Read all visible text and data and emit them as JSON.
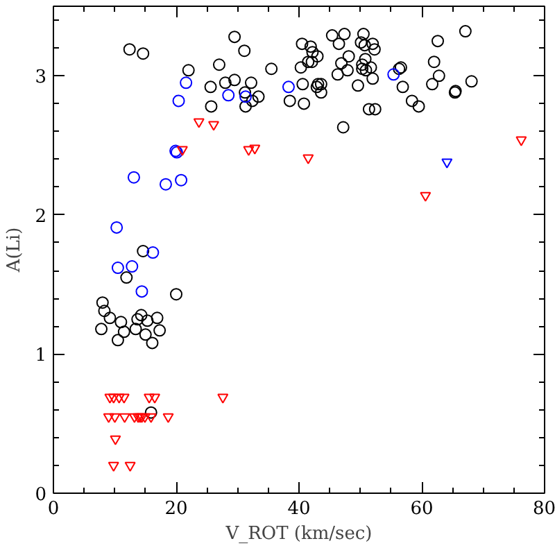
{
  "chart_data": {
    "type": "scatter",
    "xlabel": "V_ROT (km/sec)",
    "ylabel": "A(Li)",
    "xlim": [
      0,
      80
    ],
    "ylim": [
      0,
      3.5
    ],
    "xticks": [
      0,
      20,
      40,
      60,
      80
    ],
    "yticks": [
      0,
      1,
      2,
      3
    ],
    "grid": false,
    "series": [
      {
        "color": "#000000",
        "marker": "circle",
        "x": [
          12.4,
          14.6,
          29.5,
          31.1,
          22.0,
          27.0,
          35.5,
          25.6,
          28.0,
          29.5,
          32.2,
          31.2,
          33.4,
          32.4,
          31.3,
          25.7,
          38.5,
          14.6,
          40.5,
          41.9,
          42.2,
          43.0,
          41.5,
          42.1,
          40.3,
          40.6,
          42.9,
          43.1,
          43.6,
          43.6,
          40.8,
          45.4,
          47.4,
          46.5,
          50.5,
          50.1,
          50.7,
          52.0,
          52.3,
          48.1,
          46.9,
          47.9,
          46.3,
          50.8,
          50.3,
          51.7,
          50.3,
          50.9,
          52.0,
          49.6,
          51.4,
          52.4,
          47.2,
          56.3,
          56.6,
          56.9,
          58.4,
          59.5,
          62.6,
          62.0,
          62.8,
          61.7,
          65.4,
          65.5,
          67.1,
          68.1,
          11.9,
          8.0,
          8.3,
          9.2,
          7.8,
          11.0,
          11.5,
          10.5,
          14.3,
          13.7,
          15.3,
          16.9,
          13.4,
          15.0,
          17.3,
          16.1,
          15.9
        ],
        "values": [
          3.19,
          3.16,
          3.28,
          3.18,
          3.04,
          3.08,
          3.05,
          2.92,
          2.95,
          2.97,
          2.95,
          2.88,
          2.85,
          2.82,
          2.78,
          2.78,
          2.82,
          1.74,
          3.23,
          3.21,
          3.17,
          3.14,
          3.1,
          3.1,
          3.06,
          2.94,
          2.92,
          2.94,
          2.94,
          2.88,
          2.8,
          3.29,
          3.3,
          3.23,
          3.3,
          3.24,
          3.22,
          3.23,
          3.19,
          3.14,
          3.09,
          3.04,
          3.01,
          3.12,
          3.08,
          3.06,
          3.05,
          3.04,
          2.98,
          2.93,
          2.76,
          2.76,
          2.63,
          3.05,
          3.06,
          2.92,
          2.82,
          2.78,
          3.25,
          3.1,
          3.0,
          2.94,
          2.88,
          2.89,
          3.32,
          2.96,
          1.55,
          1.37,
          1.31,
          1.26,
          1.18,
          1.23,
          1.16,
          1.1,
          1.28,
          1.25,
          1.24,
          1.26,
          1.18,
          1.14,
          1.17,
          1.08,
          0.58
        ]
      },
      {
        "color": "#000000",
        "marker": "circle",
        "x": [
          20.0
        ],
        "values": [
          1.43
        ]
      },
      {
        "color": "#0000ff",
        "marker": "circle",
        "x": [
          21.6,
          20.4,
          28.5,
          31.3,
          38.3,
          19.9,
          20.1,
          13.1,
          18.3,
          10.3,
          16.2,
          12.8,
          10.5,
          14.4,
          55.4
        ],
        "values": [
          2.95,
          2.82,
          2.86,
          2.85,
          2.92,
          2.46,
          2.45,
          2.27,
          2.22,
          1.91,
          1.73,
          1.63,
          1.62,
          1.45,
          3.01
        ]
      },
      {
        "color": "#0000ff",
        "marker": "circle",
        "x": [
          20.8
        ],
        "values": [
          2.25
        ]
      },
      {
        "color": "#0000ff",
        "marker": "triangle",
        "x": [
          64.1
        ],
        "values": [
          2.38
        ]
      },
      {
        "color": "#ff0000",
        "marker": "triangle",
        "x": [
          23.7,
          26.1,
          21.0,
          31.8,
          32.8,
          41.5,
          60.6,
          76.2,
          9.2,
          9.8,
          10.7,
          11.5,
          15.6,
          16.5,
          9.0,
          10.0,
          11.6,
          13.2,
          15.9,
          18.7,
          10.1,
          9.8,
          12.5
        ],
        "values": [
          2.67,
          2.65,
          2.47,
          2.47,
          2.48,
          2.41,
          2.14,
          2.54,
          0.69,
          0.69,
          0.69,
          0.69,
          0.69,
          0.69,
          0.55,
          0.55,
          0.55,
          0.55,
          0.55,
          0.55,
          0.39,
          0.2,
          0.2
        ]
      },
      {
        "color": "#ff0000",
        "marker": "triangle",
        "x": [
          27.6,
          13.8,
          14.1,
          14.4,
          14.9
        ],
        "values": [
          0.69,
          0.55,
          0.55,
          0.55,
          0.55
        ]
      }
    ]
  }
}
